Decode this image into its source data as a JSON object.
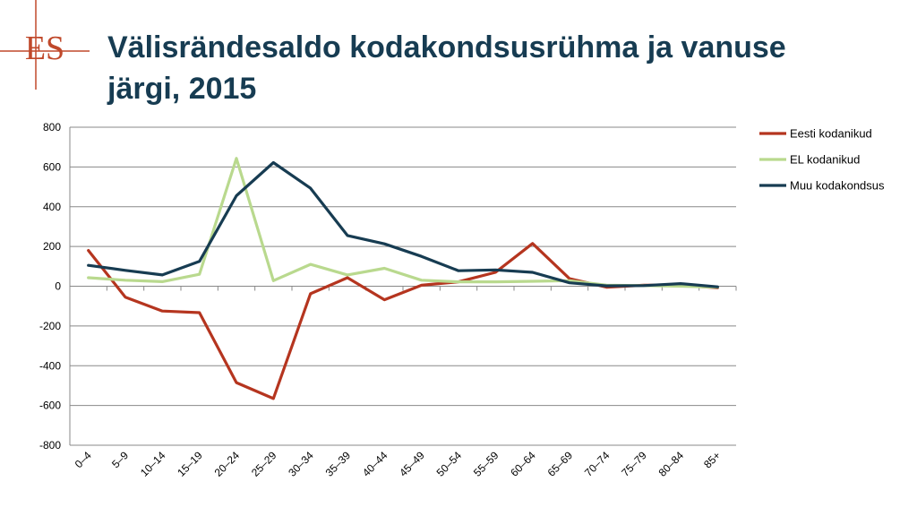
{
  "page": {
    "title": "Välisrändesaldo kodakondsusrühma ja vanuse järgi, 2015",
    "logo_text": "ES"
  },
  "colors": {
    "title": "#173c52",
    "logo": "#c0492b",
    "grid": "#888888"
  },
  "chart_data": {
    "type": "line",
    "title": "",
    "xlabel": "",
    "ylabel": "",
    "ylim": [
      -800,
      800
    ],
    "yticks": [
      800,
      600,
      400,
      200,
      0,
      -200,
      -400,
      -600,
      -800
    ],
    "grid": true,
    "legend_position": "right",
    "categories": [
      "0–4",
      "5–9",
      "10–14",
      "15–19",
      "20–24",
      "25–29",
      "30–34",
      "35–39",
      "40–44",
      "45–49",
      "50–54",
      "55–59",
      "60–64",
      "65–69",
      "70–74",
      "75–79",
      "80–84",
      "85+"
    ],
    "series": [
      {
        "name": "Eesti kodanikud",
        "color": "#b5351f",
        "values": [
          180,
          -55,
          -125,
          -133,
          -485,
          -565,
          -38,
          43,
          -68,
          5,
          22,
          70,
          215,
          38,
          -5,
          5,
          5,
          -8
        ]
      },
      {
        "name": "EL kodanikud",
        "color": "#b9d98e",
        "values": [
          43,
          30,
          23,
          60,
          643,
          28,
          110,
          57,
          90,
          30,
          22,
          22,
          25,
          28,
          5,
          3,
          0,
          -5
        ]
      },
      {
        "name": "Muu kodakondsus",
        "color": "#173c52",
        "values": [
          105,
          80,
          57,
          125,
          455,
          622,
          493,
          255,
          213,
          150,
          78,
          82,
          70,
          17,
          2,
          3,
          13,
          -3
        ]
      }
    ]
  }
}
